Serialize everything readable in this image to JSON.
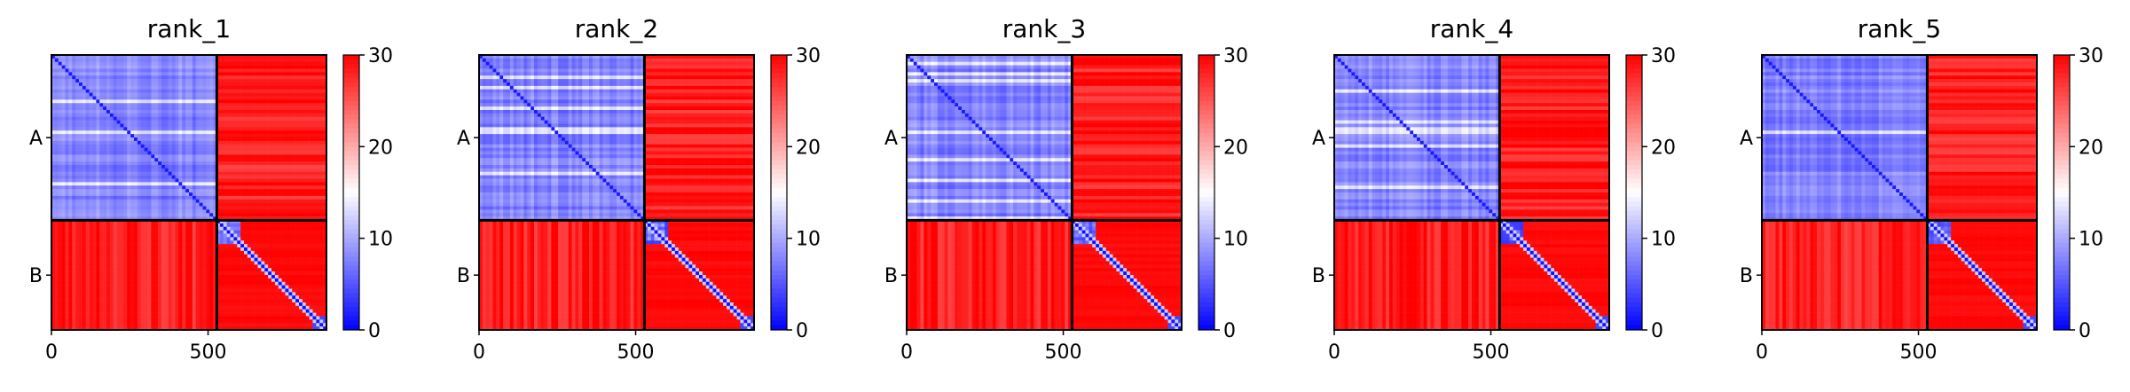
{
  "chart_data": {
    "type": "heatmap",
    "colormap": {
      "name": "bwr",
      "low": "#0000ff",
      "mid": "#ffffff",
      "high": "#ff0000",
      "vmin": 0,
      "vmax": 30
    },
    "colorbar_ticks": [
      0,
      10,
      20,
      30
    ],
    "x_ticks": [
      0,
      500
    ],
    "x_range": [
      0,
      878
    ],
    "chains": [
      {
        "label": "A",
        "start": 0,
        "end": 528
      },
      {
        "label": "B",
        "start": 528,
        "end": 878
      }
    ],
    "panels": [
      {
        "title": "rank_1"
      },
      {
        "title": "rank_2"
      },
      {
        "title": "rank_3"
      },
      {
        "title": "rank_4"
      },
      {
        "title": "rank_5"
      }
    ],
    "description_values": {
      "intra_chain_A": "low (mostly ~3-12, blue with light stripes)",
      "intra_chain_B": "red except near diagonal and small N-terminal block (~528-620)",
      "inter_chain": "high (~30, red)"
    }
  }
}
